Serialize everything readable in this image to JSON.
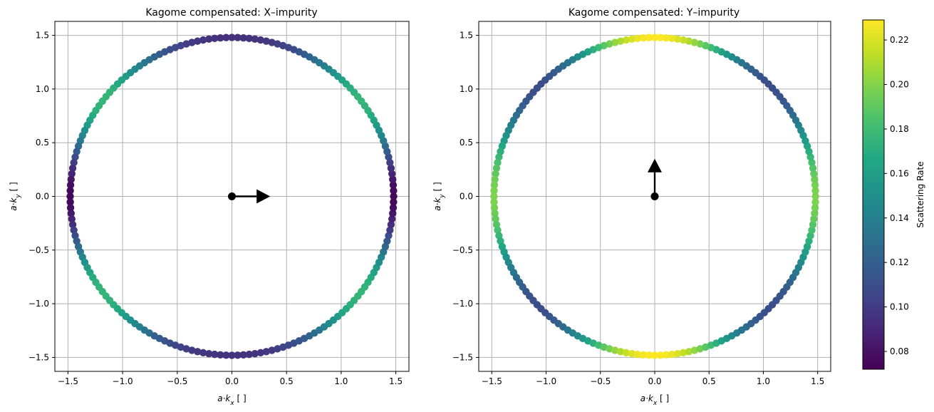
{
  "chart_data": {
    "colorbar": {
      "label": "Scattering Rate",
      "range": [
        0.072,
        0.229
      ],
      "ticks": [
        0.08,
        0.1,
        0.12,
        0.14,
        0.16,
        0.18,
        0.2,
        0.22
      ],
      "tick_labels": [
        "0.08",
        "0.10",
        "0.12",
        "0.14",
        "0.16",
        "0.18",
        "0.20",
        "0.22"
      ],
      "colormap": "viridis"
    },
    "panels": [
      {
        "type": "scatter",
        "title": "Kagome compensated: X–impurity",
        "xlabel": "a·k_x [ ]",
        "ylabel": "a·k_y [ ]",
        "xlim": [
          -1.62,
          1.62
        ],
        "ylim": [
          -1.63,
          1.63
        ],
        "xticks": [
          -1.5,
          -1.0,
          -0.5,
          0.0,
          0.5,
          1.0,
          1.5
        ],
        "yticks": [
          -1.5,
          -1.0,
          -0.5,
          0.0,
          0.5,
          1.0,
          1.5
        ],
        "xtick_labels": [
          "−1.5",
          "−1.0",
          "−0.5",
          "0.0",
          "0.5",
          "1.0",
          "1.5"
        ],
        "ytick_labels": [
          "−1.5",
          "−1.0",
          "−0.5",
          "0.0",
          "0.5",
          "1.0",
          "1.5"
        ],
        "grid": true,
        "point_radius": 1.48,
        "point_count": 176,
        "rate_model": "x_impurity",
        "arrow": {
          "from": [
            0,
            0
          ],
          "to": [
            0.35,
            0
          ],
          "color": "#000000"
        }
      },
      {
        "type": "scatter",
        "title": "Kagome compensated: Y–impurity",
        "xlabel": "a·k_x [ ]",
        "ylabel": "a·k_y [ ]",
        "xlim": [
          -1.62,
          1.62
        ],
        "ylim": [
          -1.63,
          1.63
        ],
        "xticks": [
          -1.5,
          -1.0,
          -0.5,
          0.0,
          0.5,
          1.0,
          1.5
        ],
        "yticks": [
          -1.5,
          -1.0,
          -0.5,
          0.0,
          0.5,
          1.0,
          1.5
        ],
        "xtick_labels": [
          "−1.5",
          "−1.0",
          "−0.5",
          "0.0",
          "0.5",
          "1.0",
          "1.5"
        ],
        "ytick_labels": [
          "−1.5",
          "−1.0",
          "−0.5",
          "0.0",
          "0.5",
          "1.0",
          "1.5"
        ],
        "grid": true,
        "point_radius": 1.48,
        "point_count": 176,
        "rate_model": "y_impurity",
        "arrow": {
          "from": [
            0,
            0
          ],
          "to": [
            0,
            0.35
          ],
          "color": "#000000"
        }
      }
    ]
  }
}
